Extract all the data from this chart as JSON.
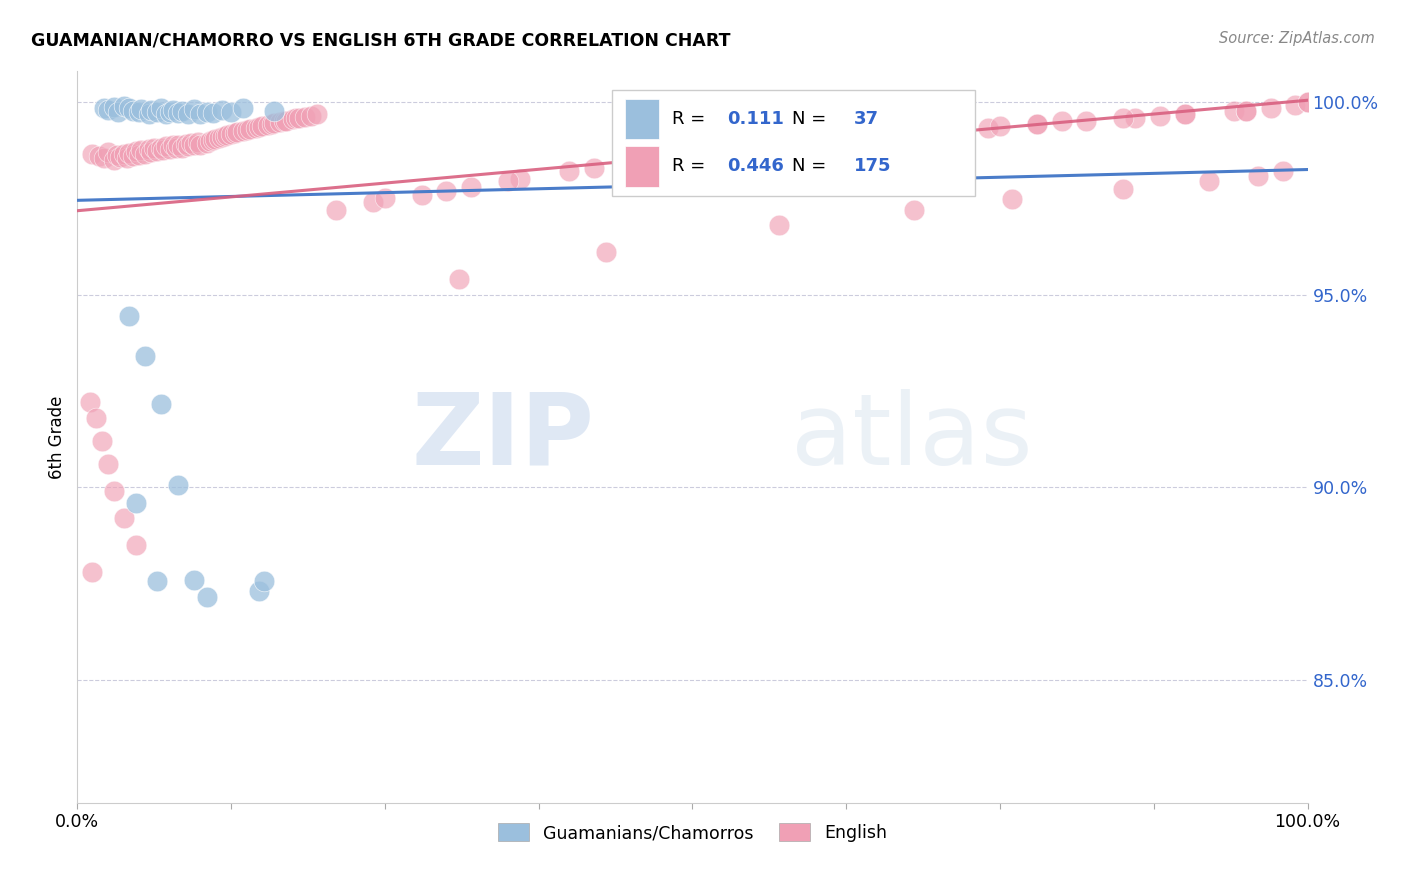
{
  "title": "GUAMANIAN/CHAMORRO VS ENGLISH 6TH GRADE CORRELATION CHART",
  "source": "Source: ZipAtlas.com",
  "ylabel": "6th Grade",
  "xlim": [
    0.0,
    1.0
  ],
  "ylim": [
    0.818,
    1.008
  ],
  "yticks": [
    0.85,
    0.9,
    0.95,
    1.0
  ],
  "ytick_labels": [
    "85.0%",
    "90.0%",
    "95.0%",
    "100.0%"
  ],
  "legend_label1": "Guamanians/Chamorros",
  "legend_label2": "English",
  "R1": "0.111",
  "N1": "37",
  "R2": "0.446",
  "N2": "175",
  "watermark_zip": "ZIP",
  "watermark_atlas": "atlas",
  "blue_color": "#9bbfdd",
  "pink_color": "#f0a0b5",
  "blue_line_color": "#4a7cc9",
  "pink_line_color": "#d96080",
  "blue_line": {
    "x0": 0.0,
    "x1": 1.0,
    "y0": 0.9745,
    "y1": 0.9825
  },
  "pink_line": {
    "x0": 0.0,
    "x1": 1.0,
    "y0": 0.9718,
    "y1": 1.0005
  },
  "blue_x": [
    0.022,
    0.025,
    0.03,
    0.033,
    0.038,
    0.042,
    0.045,
    0.05,
    0.052,
    0.058,
    0.06,
    0.065,
    0.068,
    0.072,
    0.075,
    0.078,
    0.082,
    0.085,
    0.09,
    0.095,
    0.1,
    0.105,
    0.11,
    0.118,
    0.125,
    0.135,
    0.16,
    0.042,
    0.055,
    0.068,
    0.082,
    0.048,
    0.095,
    0.065,
    0.105,
    0.148,
    0.152
  ],
  "blue_y": [
    0.9985,
    0.998,
    0.9988,
    0.9975,
    0.999,
    0.9985,
    0.9978,
    0.9975,
    0.9982,
    0.997,
    0.998,
    0.9975,
    0.9985,
    0.9968,
    0.9975,
    0.998,
    0.9972,
    0.9978,
    0.997,
    0.9982,
    0.9968,
    0.9975,
    0.9972,
    0.998,
    0.9975,
    0.9985,
    0.9978,
    0.9445,
    0.934,
    0.9215,
    0.9005,
    0.896,
    0.876,
    0.8755,
    0.8715,
    0.873,
    0.8755
  ],
  "pink_x_dense": [
    0.012,
    0.018,
    0.022,
    0.025,
    0.03,
    0.032,
    0.035,
    0.038,
    0.04,
    0.042,
    0.045,
    0.048,
    0.05,
    0.052,
    0.055,
    0.058,
    0.06,
    0.062,
    0.065,
    0.068,
    0.07,
    0.072,
    0.075,
    0.078,
    0.08,
    0.082,
    0.085,
    0.088,
    0.09,
    0.092,
    0.095,
    0.098,
    0.1,
    0.105,
    0.108,
    0.11,
    0.112,
    0.115,
    0.118,
    0.12,
    0.122,
    0.125,
    0.128,
    0.13,
    0.135,
    0.138,
    0.14,
    0.145,
    0.148,
    0.15,
    0.155,
    0.158,
    0.16,
    0.165,
    0.168,
    0.17,
    0.175,
    0.178,
    0.18,
    0.185,
    0.19,
    0.195
  ],
  "pink_y_dense": [
    0.9865,
    0.986,
    0.9855,
    0.987,
    0.985,
    0.9862,
    0.9858,
    0.9865,
    0.9855,
    0.9868,
    0.986,
    0.9872,
    0.9862,
    0.9875,
    0.9865,
    0.9878,
    0.987,
    0.988,
    0.9872,
    0.9882,
    0.9875,
    0.9885,
    0.9878,
    0.9888,
    0.988,
    0.989,
    0.9882,
    0.9892,
    0.9885,
    0.9895,
    0.9888,
    0.9897,
    0.989,
    0.9895,
    0.99,
    0.9902,
    0.9905,
    0.9908,
    0.991,
    0.9912,
    0.9915,
    0.9918,
    0.992,
    0.9922,
    0.9925,
    0.9928,
    0.993,
    0.9932,
    0.9935,
    0.9938,
    0.994,
    0.9942,
    0.9945,
    0.9948,
    0.995,
    0.9952,
    0.9955,
    0.9958,
    0.996,
    0.9962,
    0.9965,
    0.9968
  ],
  "pink_x_sparse": [
    0.21,
    0.24,
    0.28,
    0.32,
    0.36,
    0.4,
    0.45,
    0.5,
    0.54,
    0.58,
    0.62,
    0.66,
    0.7,
    0.74,
    0.78,
    0.82,
    0.86,
    0.9,
    0.94,
    0.97,
    0.99,
    1.0,
    0.25,
    0.35,
    0.42,
    0.48,
    0.56,
    0.64,
    0.72,
    0.8,
    0.88,
    0.95,
    1.0,
    0.3,
    0.5,
    0.7,
    0.9,
    0.31,
    0.43,
    0.57,
    0.68,
    0.76,
    0.85,
    0.92,
    0.96,
    0.98,
    0.6,
    0.75,
    0.85,
    0.95,
    0.65,
    0.78
  ],
  "pink_y_sparse": [
    0.972,
    0.974,
    0.976,
    0.978,
    0.98,
    0.982,
    0.984,
    0.986,
    0.9875,
    0.9888,
    0.99,
    0.9912,
    0.9922,
    0.9932,
    0.9942,
    0.9952,
    0.996,
    0.997,
    0.9978,
    0.9985,
    0.9992,
    1.0,
    0.975,
    0.9795,
    0.9828,
    0.985,
    0.9878,
    0.9905,
    0.9928,
    0.995,
    0.9965,
    0.9978,
    1.0,
    0.9768,
    0.9858,
    0.9922,
    0.997,
    0.954,
    0.961,
    0.968,
    0.972,
    0.9748,
    0.9775,
    0.9795,
    0.9808,
    0.982,
    0.9902,
    0.9938,
    0.996,
    0.9978,
    0.9912,
    0.9942
  ],
  "pink_outliers_x": [
    0.01,
    0.015,
    0.02,
    0.025,
    0.03,
    0.038,
    0.048,
    0.012
  ],
  "pink_outliers_y": [
    0.922,
    0.918,
    0.912,
    0.906,
    0.899,
    0.892,
    0.885,
    0.878
  ]
}
